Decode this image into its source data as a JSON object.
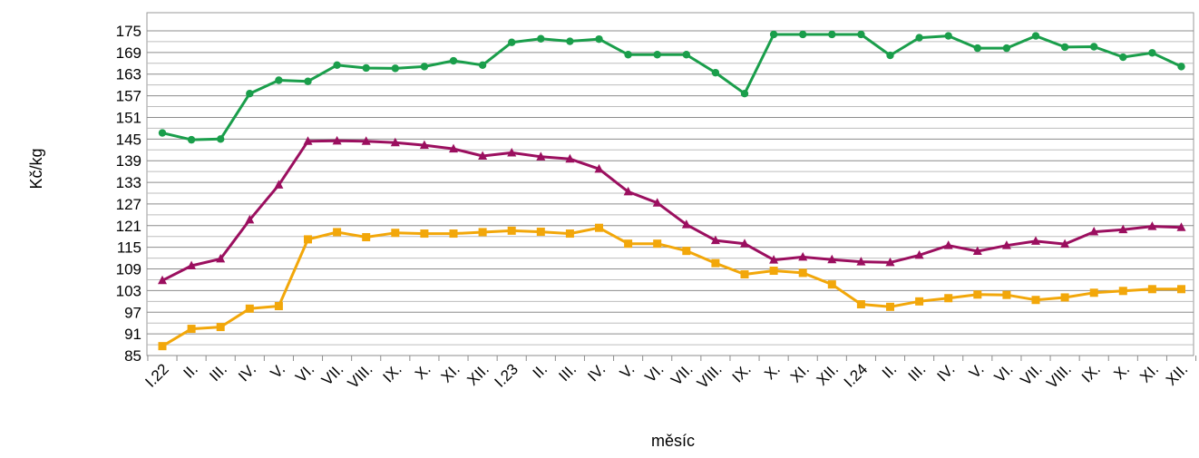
{
  "chart_data": {
    "type": "line",
    "title": "",
    "xlabel": "měsíc",
    "ylabel": "Kč/kg",
    "ylim": [
      85,
      175
    ],
    "yticks": [
      85,
      91,
      97,
      103,
      109,
      115,
      121,
      127,
      133,
      139,
      145,
      151,
      157,
      163,
      169,
      175
    ],
    "grid": true,
    "legend": "none",
    "categories": [
      "I.22",
      "II.",
      "III.",
      "IV.",
      "V.",
      "VI.",
      "VII.",
      "VIII.",
      "IX.",
      "X.",
      "XI.",
      "XII.",
      "I.23",
      "II.",
      "III.",
      "IV.",
      "V.",
      "VI.",
      "VII.",
      "VIII.",
      "IX.",
      "X.",
      "XI.",
      "XII.",
      "I.24",
      "II.",
      "III.",
      "IV.",
      "V.",
      "VI.",
      "VII.",
      "VIII.",
      "IX.",
      "X.",
      "XI.",
      "XII."
    ],
    "series": [
      {
        "color": "#1a9e4b",
        "marker": "circle",
        "values": [
          146.7,
          144.8,
          145.0,
          157.6,
          161.3,
          161.0,
          165.5,
          164.7,
          164.6,
          165.1,
          166.7,
          165.5,
          171.8,
          172.8,
          172.1,
          172.7,
          168.4,
          168.4,
          168.4,
          163.4,
          157.6,
          174.0,
          174.0,
          174.0,
          174.0,
          168.2,
          173.1,
          173.6,
          170.2,
          170.2,
          173.6,
          170.5,
          170.6,
          167.7,
          168.9,
          165.1
        ]
      },
      {
        "color": "#9b0f5f",
        "marker": "triangle",
        "values": [
          105.8,
          109.9,
          111.8,
          122.6,
          132.3,
          144.4,
          144.5,
          144.4,
          144.0,
          143.3,
          142.3,
          140.3,
          141.2,
          140.1,
          139.5,
          136.7,
          130.4,
          127.3,
          121.3,
          116.9,
          116.0,
          111.5,
          112.3,
          111.6,
          111.0,
          110.8,
          112.8,
          115.5,
          113.9,
          115.5,
          116.7,
          115.9,
          119.3,
          119.9,
          120.8,
          120.5
        ]
      },
      {
        "color": "#f2a70a",
        "marker": "square",
        "values": [
          87.6,
          92.4,
          92.9,
          98.0,
          98.7,
          117.2,
          119.2,
          117.8,
          119.0,
          118.8,
          118.8,
          119.2,
          119.6,
          119.3,
          118.8,
          120.4,
          116.0,
          116.0,
          114.0,
          110.6,
          107.5,
          108.5,
          107.9,
          104.7,
          99.2,
          98.5,
          100.0,
          100.9,
          101.9,
          101.8,
          100.4,
          101.1,
          102.4,
          102.9,
          103.4,
          103.4
        ]
      }
    ]
  }
}
